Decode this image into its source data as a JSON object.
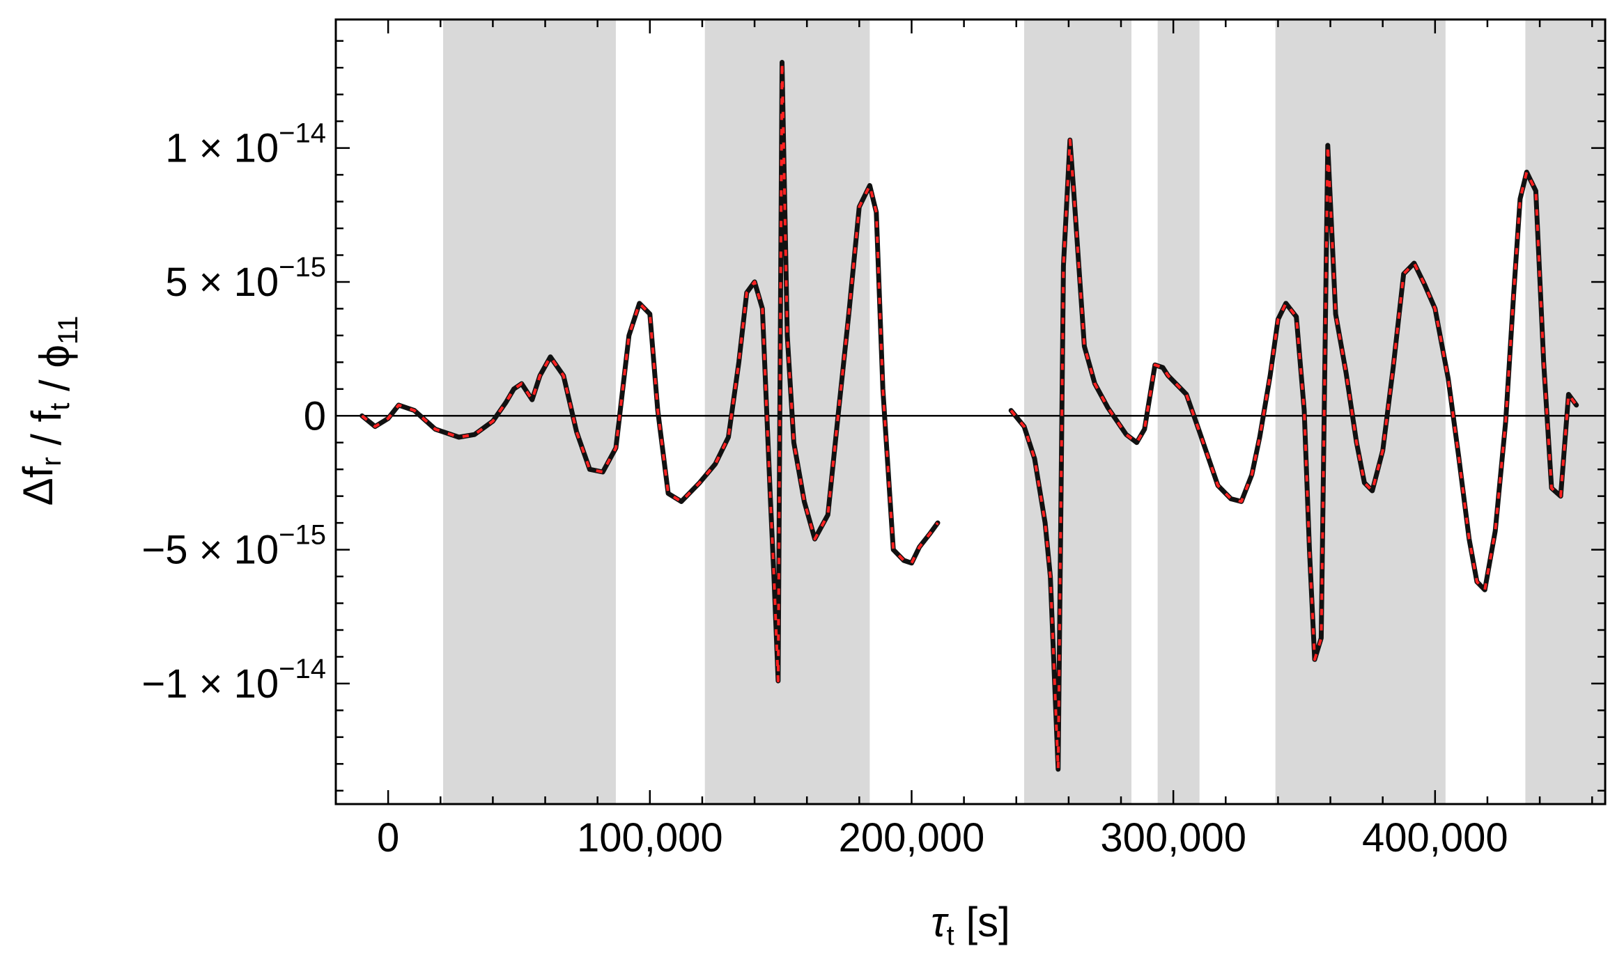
{
  "chart_data": {
    "type": "line",
    "title": "",
    "xlabel": "τ_t [s]",
    "ylabel": "Δf_r / f_t / ϕ_11",
    "xlim": [
      -20000,
      465000
    ],
    "ylim": [
      -1.45e-14,
      1.48e-14
    ],
    "x_ticks": [
      {
        "value": 0,
        "label": "0"
      },
      {
        "value": 100000,
        "label": "100,000"
      },
      {
        "value": 200000,
        "label": "200,000"
      },
      {
        "value": 300000,
        "label": "300,000"
      },
      {
        "value": 400000,
        "label": "400,000"
      }
    ],
    "y_ticks": [
      {
        "value": 1e-14,
        "mantissa": "1",
        "exponent": "−14",
        "label": "1 × 10^−14"
      },
      {
        "value": 5e-15,
        "mantissa": "5",
        "exponent": "−15",
        "label": "5 × 10^−15"
      },
      {
        "value": 0,
        "mantissa": "0",
        "exponent": "",
        "label": "0"
      },
      {
        "value": -5e-15,
        "mantissa": "−5",
        "exponent": "−15",
        "label": "−5 × 10^−15"
      },
      {
        "value": -1e-14,
        "mantissa": "−1",
        "exponent": "−14",
        "label": "−1 × 10^−14"
      }
    ],
    "shaded_intervals": [
      [
        21000,
        87000
      ],
      [
        121000,
        184000
      ],
      [
        243000,
        284000
      ],
      [
        294000,
        310000
      ],
      [
        339000,
        404000
      ],
      [
        434500,
        465000
      ]
    ],
    "zero_line": true,
    "grid": false,
    "series": [
      {
        "name": "",
        "color": "#111111",
        "style": "solid",
        "segments": [
          {
            "x": [
              -10000,
              -5000,
              0,
              4000,
              10000,
              18000,
              27000,
              33000,
              40000,
              45000,
              48000,
              51000,
              55000,
              58000,
              62000,
              67000,
              72000,
              77000,
              82000,
              87000,
              92000,
              96000,
              100000,
              103000,
              107000,
              112000,
              119000,
              125000,
              130000,
              134000,
              137000,
              140000,
              143000,
              146000,
              147500,
              149000,
              150500,
              152500,
              155000,
              159000,
              163000,
              168000,
              172000,
              176000,
              180000,
              184000,
              186500,
              189000,
              193000,
              197000,
              200000,
              203000,
              207000,
              210000
            ],
            "y": [
              0,
              -4e-16,
              -1e-16,
              4e-16,
              2e-16,
              -5e-16,
              -8e-16,
              -7e-16,
              -2e-16,
              5e-16,
              1e-15,
              1.2e-15,
              6e-16,
              1.5e-15,
              2.2e-15,
              1.5e-15,
              -6e-16,
              -2e-15,
              -2.1e-15,
              -1.2e-15,
              3e-15,
              4.2e-15,
              3.8e-15,
              2e-16,
              -2.9e-15,
              -3.2e-15,
              -2.5e-15,
              -1.8e-15,
              -8e-16,
              2e-15,
              4.6e-15,
              5e-15,
              4e-15,
              -3e-15,
              -6.2e-15,
              -9.9e-15,
              1.32e-14,
              3e-15,
              -1e-15,
              -3.2e-15,
              -4.6e-15,
              -3.7e-15,
              1e-16,
              3.8e-15,
              7.8e-15,
              8.6e-15,
              7.6e-15,
              1e-15,
              -5e-15,
              -5.4e-15,
              -5.5e-15,
              -4.9e-15,
              -4.4e-15,
              -4e-15
            ]
          },
          {
            "x": [
              238000,
              243000,
              247000,
              251000,
              253000,
              256000,
              258000,
              260500,
              262000,
              266000,
              270000,
              275000,
              282000,
              286000,
              289000,
              293000,
              296000,
              298000,
              302000,
              305000,
              310000,
              317000,
              322000,
              326000,
              330000,
              333000,
              337000,
              340000,
              343000,
              347000,
              350000,
              352000,
              354000,
              356500,
              359000,
              362000,
              366000,
              370000,
              373000,
              376000,
              380000,
              384000,
              388000,
              392000,
              396000,
              400000,
              405000,
              409000,
              413000,
              416000,
              419000,
              423000,
              427000,
              430000,
              432500,
              435000,
              438500,
              441500,
              444500,
              448000,
              451000,
              454000
            ],
            "y": [
              2e-16,
              -4e-16,
              -1.6e-15,
              -4e-15,
              -6e-15,
              -1.32e-14,
              5.6e-15,
              1.03e-14,
              8.3e-15,
              2.6e-15,
              1.2e-15,
              3e-16,
              -7e-16,
              -1e-15,
              -5e-16,
              1.9e-15,
              1.8e-15,
              1.5e-15,
              1.1e-15,
              8e-16,
              -6e-16,
              -2.6e-15,
              -3.1e-15,
              -3.2e-15,
              -2.2e-15,
              -8e-16,
              1.5e-15,
              3.6e-15,
              4.2e-15,
              3.7e-15,
              2e-16,
              -5e-15,
              -9.1e-15,
              -8.3e-15,
              1.01e-14,
              3.8e-15,
              1.6e-15,
              -1e-15,
              -2.5e-15,
              -2.8e-15,
              -1.3e-15,
              1.8e-15,
              5.3e-15,
              5.7e-15,
              4.9e-15,
              4e-15,
              1.4e-15,
              -1.5e-15,
              -4.6e-15,
              -6.2e-15,
              -6.5e-15,
              -4.3e-15,
              -2e-16,
              4.5e-15,
              8.1e-15,
              9.1e-15,
              8.4e-15,
              2e-15,
              -2.7e-15,
              -3e-15,
              8e-16,
              4e-16
            ]
          }
        ]
      },
      {
        "name": "",
        "color": "#ff2222",
        "style": "dashed",
        "same_data_as_series": 0
      }
    ]
  }
}
